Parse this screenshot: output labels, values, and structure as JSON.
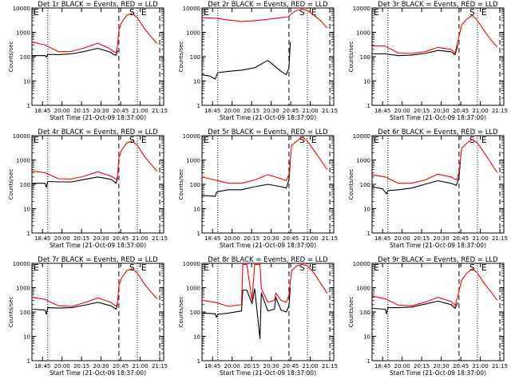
{
  "figure": {
    "xlabel": "Start Time (21-Oct-09 18:37:00)",
    "ylabel": "Counts/sec",
    "x_tick_labels": [
      "18:45",
      "20:00",
      "20:15",
      "20:30",
      "20:45",
      "21:00",
      "21:15"
    ],
    "y_tick_labels": [
      "1",
      "10",
      "100",
      "1000",
      "10000"
    ],
    "colors": {
      "events": "#000000",
      "lld": "#ff0000",
      "axes": "#000000"
    }
  },
  "chart_data": [
    {
      "type": "line",
      "title": "Det 1r BLACK = Events, RED = LLD",
      "xlabel": "Start Time (21-Oct-09 18:37:00)",
      "ylabel": "Counts/sec",
      "ylim": [
        1,
        10000
      ],
      "yscale": "log",
      "markers": {
        "S": 0.76,
        "E": 0.85
      },
      "vlines": [
        {
          "x": 0.12,
          "style": "dotted"
        },
        {
          "x": 0.66,
          "style": "dashed"
        },
        {
          "x": 0.8,
          "style": "dotted"
        },
        {
          "x": 0.97,
          "style": "dashed"
        }
      ],
      "series": [
        {
          "name": "Events",
          "color": "#000000",
          "x": [
            0,
            0.1,
            0.11,
            0.12,
            0.2,
            0.3,
            0.4,
            0.5,
            0.6,
            0.62,
            0.64,
            0.65,
            0.66,
            0.68,
            0.72,
            0.76,
            0.8,
            0.85,
            0.9,
            0.95
          ],
          "y": [
            110,
            110,
            95,
            125,
            120,
            130,
            165,
            220,
            150,
            120,
            115,
            180,
            null,
            null,
            null,
            null,
            null,
            null,
            null,
            null
          ]
        },
        {
          "name": "LLD",
          "color": "#ff0000",
          "x": [
            0,
            0.1,
            0.2,
            0.3,
            0.4,
            0.5,
            0.6,
            0.62,
            0.64,
            0.65,
            0.66,
            0.68,
            0.72,
            0.76,
            0.8,
            0.85,
            0.9,
            0.95
          ],
          "y": [
            400,
            300,
            160,
            165,
            230,
            360,
            200,
            160,
            150,
            300,
            1200,
            2500,
            5000,
            6000,
            4000,
            1500,
            700,
            350
          ]
        }
      ]
    },
    {
      "type": "line",
      "title": "Det 2r BLACK = Events, RED = LLD",
      "xlabel": "Start Time (21-Oct-09 18:37:00)",
      "ylabel": "Counts/sec",
      "ylim": [
        1,
        10000
      ],
      "yscale": "log",
      "markers": {
        "S": 0.76,
        "E": 0.85
      },
      "vlines": [
        {
          "x": 0.12,
          "style": "dotted"
        },
        {
          "x": 0.66,
          "style": "dashed"
        },
        {
          "x": 0.8,
          "style": "dotted"
        },
        {
          "x": 0.97,
          "style": "dashed"
        }
      ],
      "series": [
        {
          "name": "Events",
          "color": "#000000",
          "x": [
            0,
            0.06,
            0.1,
            0.12,
            0.2,
            0.3,
            0.4,
            0.5,
            0.6,
            0.64,
            0.66,
            0.67
          ],
          "y": [
            18,
            16,
            12,
            22,
            25,
            28,
            35,
            70,
            25,
            18,
            35,
            400
          ]
        },
        {
          "name": "LLD",
          "color": "#ff0000",
          "x": [
            0,
            0.1,
            0.2,
            0.3,
            0.4,
            0.5,
            0.6,
            0.64,
            0.66,
            0.68,
            0.72,
            0.76,
            0.8,
            0.85,
            0.9,
            0.95
          ],
          "y": [
            4000,
            3800,
            3200,
            2800,
            3000,
            3400,
            4000,
            4200,
            4500,
            6000,
            8000,
            9000,
            8000,
            5000,
            3000,
            1500
          ]
        }
      ]
    },
    {
      "type": "line",
      "title": "Det 3r BLACK = Events, RED = LLD",
      "xlabel": "Start Time (21-Oct-09 18:37:00)",
      "ylabel": "Counts/sec",
      "ylim": [
        1,
        10000
      ],
      "yscale": "log",
      "markers": {
        "S": 0.76,
        "E": 0.85
      },
      "vlines": [
        {
          "x": 0.12,
          "style": "dotted"
        },
        {
          "x": 0.66,
          "style": "dashed"
        },
        {
          "x": 0.8,
          "style": "dotted"
        },
        {
          "x": 0.97,
          "style": "dashed"
        }
      ],
      "series": [
        {
          "name": "Events",
          "color": "#000000",
          "x": [
            0,
            0.1,
            0.2,
            0.3,
            0.4,
            0.5,
            0.6,
            0.63,
            0.65
          ],
          "y": [
            130,
            130,
            110,
            115,
            135,
            180,
            160,
            120,
            300
          ]
        },
        {
          "name": "LLD",
          "color": "#ff0000",
          "x": [
            0,
            0.1,
            0.2,
            0.3,
            0.4,
            0.5,
            0.6,
            0.63,
            0.65,
            0.68,
            0.72,
            0.76,
            0.8,
            0.85,
            0.9,
            0.95
          ],
          "y": [
            280,
            270,
            140,
            135,
            160,
            240,
            200,
            140,
            400,
            2000,
            3500,
            5000,
            3000,
            1200,
            500,
            250
          ]
        }
      ]
    },
    {
      "type": "line",
      "title": "Det 4r BLACK = Events, RED = LLD",
      "xlabel": "Start Time (21-Oct-09 18:37:00)",
      "ylabel": "Counts/sec",
      "ylim": [
        1,
        10000
      ],
      "yscale": "log",
      "markers": {
        "S": 0.76,
        "E": 0.85
      },
      "vlines": [
        {
          "x": 0.12,
          "style": "dotted"
        },
        {
          "x": 0.66,
          "style": "dashed"
        },
        {
          "x": 0.8,
          "style": "dotted"
        },
        {
          "x": 0.97,
          "style": "dashed"
        }
      ],
      "series": [
        {
          "name": "Events",
          "color": "#000000",
          "x": [
            0,
            0.1,
            0.11,
            0.12,
            0.2,
            0.3,
            0.4,
            0.5,
            0.6,
            0.64,
            0.65
          ],
          "y": [
            110,
            110,
            75,
            130,
            125,
            125,
            160,
            200,
            160,
            110,
            200
          ]
        },
        {
          "name": "LLD",
          "color": "#ff0000",
          "x": [
            0,
            0.1,
            0.2,
            0.3,
            0.4,
            0.5,
            0.6,
            0.64,
            0.65,
            0.66,
            0.68,
            0.72,
            0.76,
            0.8,
            0.85,
            0.9,
            0.95
          ],
          "y": [
            350,
            300,
            170,
            165,
            220,
            330,
            220,
            160,
            220,
            1200,
            2500,
            5000,
            6000,
            4000,
            1500,
            700,
            350
          ]
        }
      ]
    },
    {
      "type": "line",
      "title": "Det 5r BLACK = Events, RED = LLD",
      "xlabel": "Start Time (21-Oct-09 18:37:00)",
      "ylabel": "Counts/sec",
      "ylim": [
        1,
        10000
      ],
      "yscale": "log",
      "markers": {
        "S": 0.76,
        "E": 0.85
      },
      "vlines": [
        {
          "x": 0.12,
          "style": "dotted"
        },
        {
          "x": 0.66,
          "style": "dashed"
        },
        {
          "x": 0.8,
          "style": "dotted"
        },
        {
          "x": 0.97,
          "style": "dashed"
        }
      ],
      "series": [
        {
          "name": "Events",
          "color": "#000000",
          "x": [
            0,
            0.1,
            0.11,
            0.12,
            0.2,
            0.3,
            0.4,
            0.5,
            0.6,
            0.64,
            0.66,
            0.67
          ],
          "y": [
            35,
            32,
            45,
            50,
            60,
            60,
            80,
            100,
            80,
            70,
            150,
            900
          ]
        },
        {
          "name": "LLD",
          "color": "#ff0000",
          "x": [
            0,
            0.1,
            0.2,
            0.3,
            0.4,
            0.5,
            0.6,
            0.64,
            0.66,
            0.68,
            0.72,
            0.76,
            0.8,
            0.85,
            0.9,
            0.95
          ],
          "y": [
            200,
            150,
            110,
            110,
            150,
            250,
            170,
            140,
            250,
            4000,
            6000,
            9000,
            6000,
            2500,
            1000,
            400
          ]
        }
      ]
    },
    {
      "type": "line",
      "title": "Det 6r BLACK = Events, RED = LLD",
      "xlabel": "Start Time (21-Oct-09 18:37:00)",
      "ylabel": "Counts/sec",
      "ylim": [
        1,
        10000
      ],
      "yscale": "log",
      "markers": {
        "S": 0.76,
        "E": 0.85
      },
      "vlines": [
        {
          "x": 0.12,
          "style": "dotted"
        },
        {
          "x": 0.66,
          "style": "dashed"
        },
        {
          "x": 0.8,
          "style": "dotted"
        },
        {
          "x": 0.97,
          "style": "dashed"
        }
      ],
      "series": [
        {
          "name": "Events",
          "color": "#000000",
          "x": [
            0,
            0.08,
            0.11,
            0.12,
            0.2,
            0.3,
            0.4,
            0.5,
            0.6,
            0.64,
            0.66,
            0.67
          ],
          "y": [
            80,
            65,
            40,
            55,
            60,
            70,
            100,
            140,
            110,
            90,
            200,
            800
          ]
        },
        {
          "name": "LLD",
          "color": "#ff0000",
          "x": [
            0,
            0.1,
            0.2,
            0.3,
            0.4,
            0.5,
            0.6,
            0.64,
            0.66,
            0.68,
            0.72,
            0.76,
            0.8,
            0.85,
            0.9,
            0.95
          ],
          "y": [
            250,
            200,
            110,
            110,
            150,
            260,
            200,
            150,
            300,
            3000,
            5000,
            7000,
            5000,
            2000,
            800,
            300
          ]
        }
      ]
    },
    {
      "type": "line",
      "title": "Det 7r BLACK = Events, RED = LLD",
      "xlabel": "Start Time (21-Oct-09 18:37:00)",
      "ylabel": "Counts/sec",
      "ylim": [
        1,
        10000
      ],
      "yscale": "log",
      "markers": {
        "S": 0.76,
        "E": 0.85
      },
      "vlines": [
        {
          "x": 0.12,
          "style": "dotted"
        },
        {
          "x": 0.66,
          "style": "dashed"
        },
        {
          "x": 0.8,
          "style": "dotted"
        },
        {
          "x": 0.97,
          "style": "dashed"
        }
      ],
      "series": [
        {
          "name": "Events",
          "color": "#000000",
          "x": [
            0,
            0.1,
            0.11,
            0.12,
            0.2,
            0.3,
            0.4,
            0.5,
            0.6,
            0.64,
            0.65
          ],
          "y": [
            130,
            120,
            80,
            150,
            145,
            150,
            190,
            250,
            180,
            130,
            220
          ]
        },
        {
          "name": "LLD",
          "color": "#ff0000",
          "x": [
            0,
            0.1,
            0.2,
            0.3,
            0.4,
            0.5,
            0.6,
            0.64,
            0.65,
            0.66,
            0.68,
            0.72,
            0.76,
            0.8,
            0.85,
            0.9,
            0.95
          ],
          "y": [
            400,
            330,
            180,
            170,
            240,
            380,
            250,
            170,
            250,
            1200,
            2500,
            5000,
            6000,
            4000,
            1500,
            700,
            350
          ]
        }
      ]
    },
    {
      "type": "line",
      "title": "Det 8r BLACK = Events, RED = LLD",
      "xlabel": "Start Time (21-Oct-09 18:37:00)",
      "ylabel": "Counts/sec",
      "ylim": [
        1,
        10000
      ],
      "yscale": "log",
      "markers": {
        "S": 0.76,
        "E": 0.85
      },
      "vlines": [
        {
          "x": 0.12,
          "style": "dotted"
        },
        {
          "x": 0.66,
          "style": "dashed"
        },
        {
          "x": 0.8,
          "style": "dotted"
        },
        {
          "x": 0.97,
          "style": "dashed"
        }
      ],
      "series": [
        {
          "name": "Events",
          "color": "#000000",
          "x": [
            0,
            0.1,
            0.11,
            0.12,
            0.2,
            0.3,
            0.31,
            0.34,
            0.38,
            0.4,
            0.44,
            0.45,
            0.5,
            0.55,
            0.56,
            0.6,
            0.64,
            0.66,
            0.67
          ],
          "y": [
            90,
            85,
            60,
            80,
            90,
            110,
            800,
            800,
            220,
            900,
            8,
            600,
            110,
            130,
            400,
            120,
            100,
            180,
            1000
          ]
        },
        {
          "name": "LLD",
          "color": "#ff0000",
          "x": [
            0,
            0.1,
            0.2,
            0.3,
            0.31,
            0.34,
            0.38,
            0.4,
            0.44,
            0.45,
            0.5,
            0.55,
            0.56,
            0.6,
            0.64,
            0.66,
            0.68,
            0.72,
            0.76,
            0.8,
            0.85,
            0.9,
            0.95
          ],
          "y": [
            300,
            250,
            170,
            200,
            9000,
            9000,
            300,
            9000,
            9000,
            900,
            250,
            300,
            600,
            300,
            250,
            500,
            5000,
            8000,
            9000,
            8000,
            4000,
            1500,
            600
          ]
        }
      ]
    },
    {
      "type": "line",
      "title": "Det 9r BLACK = Events, RED = LLD",
      "xlabel": "Start Time (21-Oct-09 18:37:00)",
      "ylabel": "Counts/sec",
      "ylim": [
        1,
        10000
      ],
      "yscale": "log",
      "markers": {
        "S": 0.76,
        "E": 0.85
      },
      "vlines": [
        {
          "x": 0.12,
          "style": "dotted"
        },
        {
          "x": 0.66,
          "style": "dashed"
        },
        {
          "x": 0.8,
          "style": "dotted"
        },
        {
          "x": 0.97,
          "style": "dashed"
        }
      ],
      "series": [
        {
          "name": "Events",
          "color": "#000000",
          "x": [
            0,
            0.1,
            0.11,
            0.12,
            0.2,
            0.3,
            0.4,
            0.5,
            0.6,
            0.63,
            0.65
          ],
          "y": [
            140,
            130,
            85,
            150,
            150,
            160,
            210,
            280,
            200,
            140,
            250
          ]
        },
        {
          "name": "LLD",
          "color": "#ff0000",
          "x": [
            0,
            0.1,
            0.2,
            0.3,
            0.4,
            0.5,
            0.6,
            0.63,
            0.65,
            0.68,
            0.72,
            0.76,
            0.8,
            0.85,
            0.9,
            0.95
          ],
          "y": [
            450,
            350,
            190,
            180,
            250,
            400,
            270,
            180,
            450,
            2000,
            4000,
            6000,
            4000,
            1500,
            700,
            300
          ]
        }
      ]
    }
  ]
}
